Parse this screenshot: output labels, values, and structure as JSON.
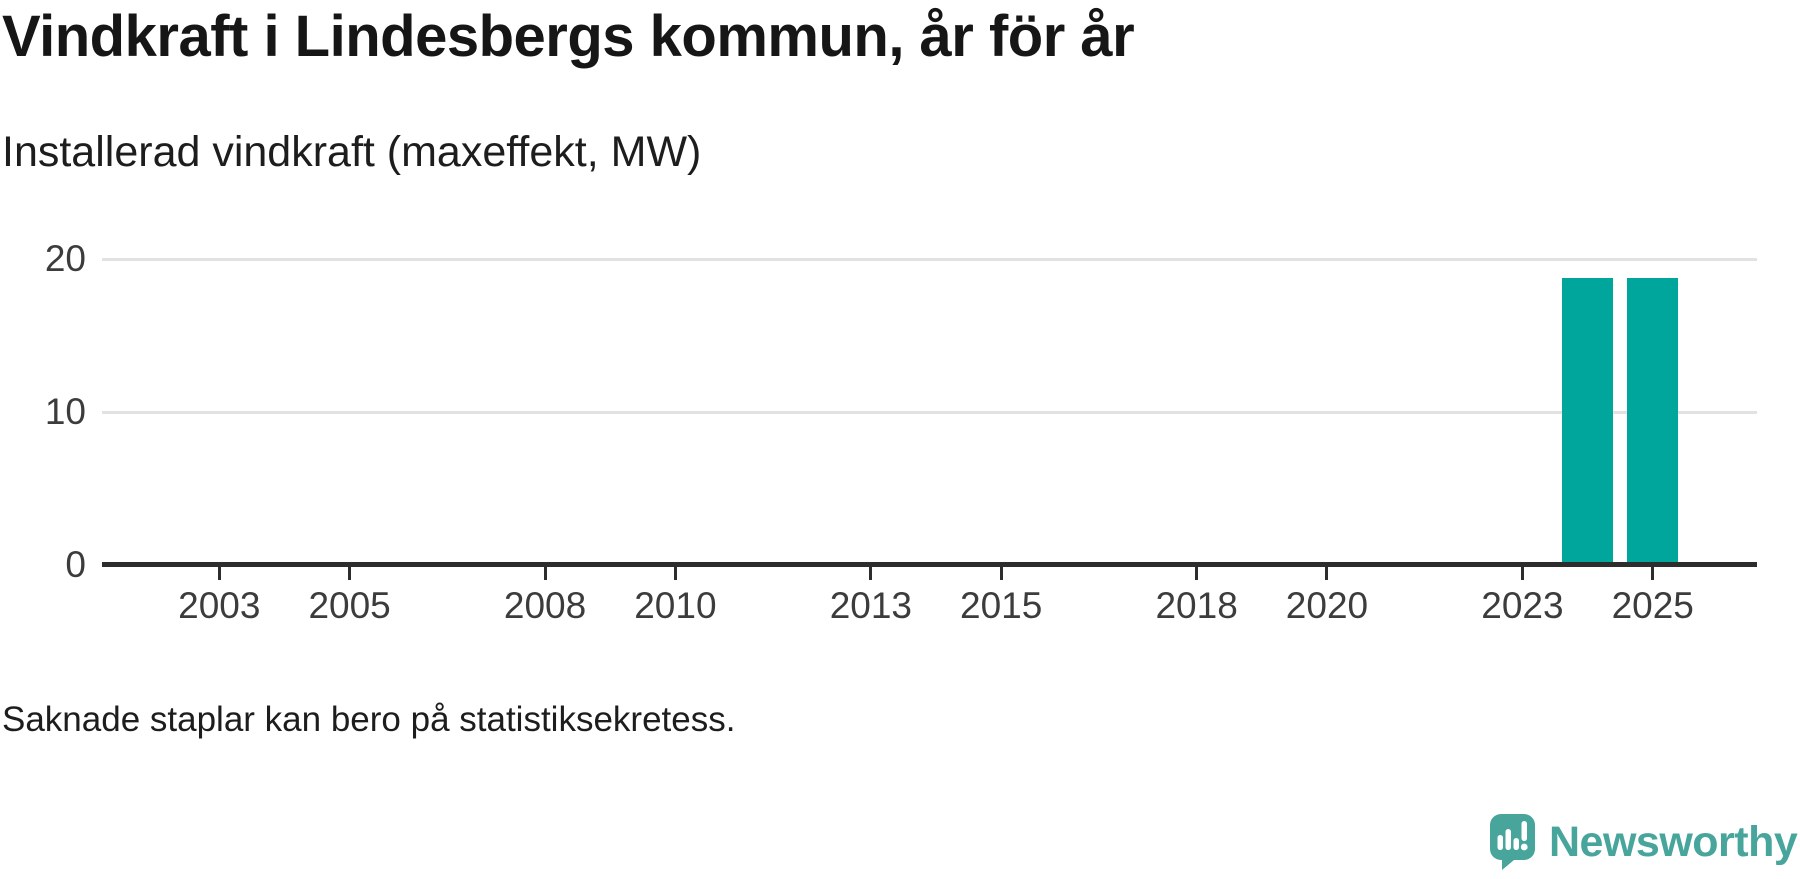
{
  "header": {
    "title": "Vindkraft i Lindesbergs kommun, år för år",
    "subtitle": "Installerad vindkraft (maxeffekt, MW)"
  },
  "chart_data": {
    "type": "bar",
    "title": "Vindkraft i Lindesbergs kommun, år för år",
    "subtitle": "Installerad vindkraft (maxeffekt, MW)",
    "unit": "MW",
    "bars": [
      {
        "year": 2024,
        "value": 18.6
      },
      {
        "year": 2025,
        "value": 18.6
      }
    ],
    "x_ticks": [
      2003,
      2005,
      2008,
      2010,
      2013,
      2015,
      2018,
      2020,
      2023,
      2025
    ],
    "y_ticks": [
      0,
      10,
      20
    ],
    "y_gridlines": [
      10,
      20
    ],
    "ylim": [
      0,
      20
    ],
    "x_range": [
      2001.2,
      2026.6
    ],
    "grid": "horizontal-only",
    "legend": "none",
    "bar_color": "#00a59b"
  },
  "footer": {
    "note": "Saknade staplar kan bero på statistiksekretess.",
    "brand": "Newsworthy"
  },
  "colors": {
    "bar": "#00a59b",
    "brand_teal": "#47a59c",
    "axis": "#2d2d2d",
    "grid": "#e2e2e2",
    "text_dark": "#161616"
  }
}
